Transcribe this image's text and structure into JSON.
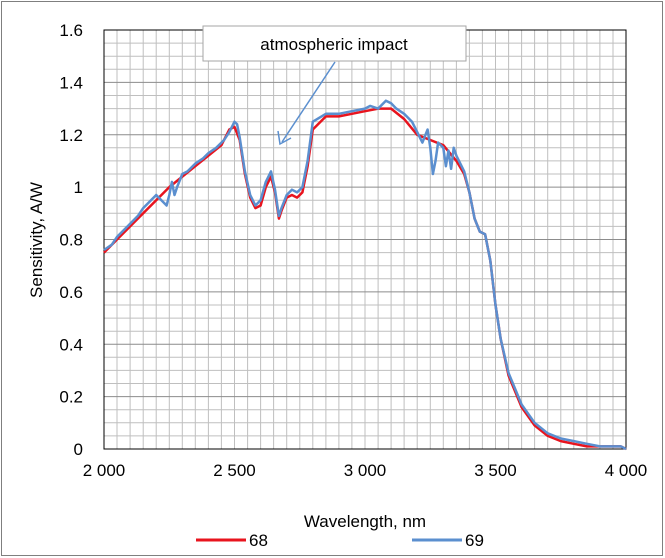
{
  "chart_data": {
    "type": "line",
    "title": "",
    "xlabel": "Wavelength, nm",
    "ylabel": "Sensitivity, A/W",
    "xlim": [
      2000,
      4000
    ],
    "ylim": [
      0,
      1.6
    ],
    "x_ticks": [
      2000,
      2500,
      3000,
      3500,
      4000
    ],
    "x_tick_labels": [
      "2 000",
      "2 500",
      "3 000",
      "3 500",
      "4 000"
    ],
    "y_ticks": [
      0,
      0.2,
      0.4,
      0.6,
      0.8,
      1,
      1.2,
      1.4,
      1.6
    ],
    "y_tick_labels": [
      "0",
      "0.2",
      "0.4",
      "0.6",
      "0.8",
      "1",
      "1.2",
      "1.4",
      "1.6"
    ],
    "grid": true,
    "legend_position": "bottom",
    "annotation": {
      "text": "atmospheric impact",
      "arrow_target": {
        "x": 2660,
        "y": 1.16
      }
    },
    "series": [
      {
        "name": "68",
        "color": "#e8141e",
        "x": [
          2000,
          2050,
          2100,
          2150,
          2200,
          2250,
          2300,
          2350,
          2400,
          2450,
          2480,
          2500,
          2520,
          2540,
          2560,
          2580,
          2600,
          2620,
          2640,
          2655,
          2670,
          2680,
          2700,
          2720,
          2740,
          2760,
          2780,
          2800,
          2850,
          2900,
          2950,
          3000,
          3050,
          3100,
          3150,
          3200,
          3250,
          3300,
          3350,
          3380,
          3400,
          3420,
          3440,
          3460,
          3480,
          3500,
          3520,
          3550,
          3600,
          3650,
          3700,
          3750,
          3800,
          3850,
          3900,
          3950,
          3980,
          4000
        ],
        "values": [
          0.75,
          0.8,
          0.85,
          0.9,
          0.95,
          1.0,
          1.04,
          1.08,
          1.12,
          1.16,
          1.22,
          1.23,
          1.18,
          1.05,
          0.96,
          0.92,
          0.93,
          1.0,
          1.04,
          0.98,
          0.88,
          0.91,
          0.96,
          0.97,
          0.96,
          0.98,
          1.08,
          1.22,
          1.27,
          1.27,
          1.28,
          1.29,
          1.3,
          1.3,
          1.26,
          1.2,
          1.18,
          1.16,
          1.1,
          1.05,
          0.98,
          0.88,
          0.83,
          0.82,
          0.72,
          0.55,
          0.42,
          0.28,
          0.16,
          0.09,
          0.05,
          0.03,
          0.02,
          0.01,
          0.01,
          0.01,
          0.01,
          0.0
        ]
      },
      {
        "name": "69",
        "color": "#5b8fcf",
        "x": [
          2000,
          2030,
          2050,
          2080,
          2100,
          2130,
          2150,
          2180,
          2200,
          2220,
          2240,
          2250,
          2260,
          2270,
          2280,
          2300,
          2320,
          2350,
          2380,
          2400,
          2430,
          2460,
          2480,
          2500,
          2510,
          2520,
          2540,
          2560,
          2580,
          2600,
          2620,
          2640,
          2655,
          2670,
          2680,
          2700,
          2720,
          2740,
          2760,
          2780,
          2800,
          2850,
          2900,
          2950,
          3000,
          3020,
          3050,
          3080,
          3100,
          3120,
          3150,
          3180,
          3200,
          3220,
          3240,
          3250,
          3260,
          3270,
          3280,
          3300,
          3310,
          3320,
          3330,
          3340,
          3350,
          3360,
          3380,
          3400,
          3420,
          3440,
          3460,
          3480,
          3500,
          3520,
          3550,
          3600,
          3650,
          3700,
          3750,
          3800,
          3850,
          3900,
          3950,
          3980,
          4000
        ],
        "values": [
          0.76,
          0.78,
          0.81,
          0.84,
          0.86,
          0.89,
          0.92,
          0.95,
          0.97,
          0.95,
          0.93,
          0.97,
          1.02,
          0.97,
          1.0,
          1.05,
          1.06,
          1.09,
          1.11,
          1.13,
          1.15,
          1.18,
          1.21,
          1.25,
          1.24,
          1.19,
          1.06,
          0.97,
          0.93,
          0.95,
          1.02,
          1.06,
          0.99,
          0.89,
          0.92,
          0.97,
          0.99,
          0.98,
          1.0,
          1.1,
          1.25,
          1.28,
          1.28,
          1.29,
          1.3,
          1.31,
          1.3,
          1.33,
          1.32,
          1.3,
          1.28,
          1.25,
          1.21,
          1.17,
          1.22,
          1.15,
          1.05,
          1.1,
          1.17,
          1.15,
          1.08,
          1.14,
          1.07,
          1.15,
          1.12,
          1.1,
          1.06,
          0.98,
          0.88,
          0.83,
          0.82,
          0.72,
          0.55,
          0.42,
          0.29,
          0.17,
          0.1,
          0.06,
          0.04,
          0.03,
          0.02,
          0.01,
          0.01,
          0.01,
          0.0
        ]
      }
    ]
  }
}
